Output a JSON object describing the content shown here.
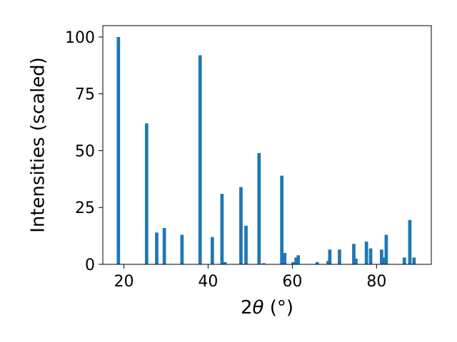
{
  "chart_data": {
    "type": "bar",
    "xlabel_parts": {
      "prefix": "2",
      "symbol": "θ",
      "suffix": " (°)"
    },
    "ylabel": "Intensities (scaled)",
    "xlim": [
      15,
      93
    ],
    "ylim": [
      0,
      105
    ],
    "xticks": [
      20,
      40,
      60,
      80
    ],
    "yticks": [
      0,
      25,
      50,
      75,
      100
    ],
    "bar_width": 0.8,
    "color": "#1f77b4",
    "grid": false,
    "x": [
      18.7,
      25.4,
      27.8,
      29.6,
      33.8,
      38.1,
      41.0,
      43.3,
      44.0,
      47.8,
      49.0,
      52.1,
      53.2,
      57.5,
      58.2,
      60.2,
      60.9,
      61.4,
      65.9,
      68.5,
      68.9,
      71.2,
      74.6,
      75.1,
      77.6,
      78.6,
      81.2,
      81.8,
      82.3,
      86.6,
      87.9,
      88.9
    ],
    "values": [
      100,
      62,
      14,
      16,
      13,
      92,
      12,
      31,
      1,
      34,
      17,
      49,
      0.5,
      39,
      5,
      1,
      3,
      4,
      1,
      1.5,
      6.5,
      6.5,
      9,
      2.5,
      10,
      7,
      6.5,
      3,
      13,
      3,
      19.5,
      3
    ]
  }
}
